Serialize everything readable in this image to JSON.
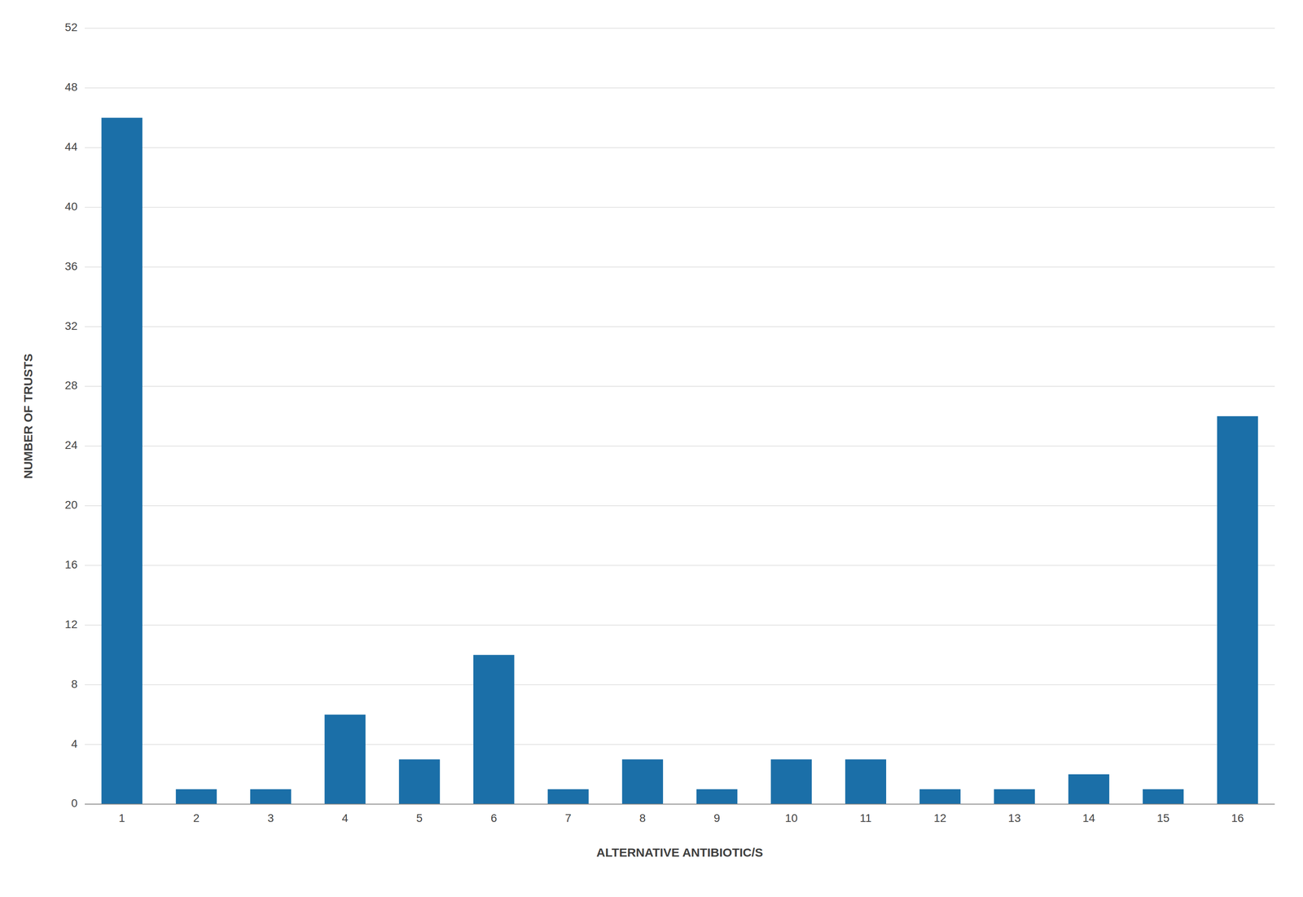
{
  "chart_data": {
    "type": "bar",
    "categories": [
      "1",
      "2",
      "3",
      "4",
      "5",
      "6",
      "7",
      "8",
      "9",
      "10",
      "11",
      "12",
      "13",
      "14",
      "15",
      "16"
    ],
    "values": [
      46,
      1,
      1,
      6,
      3,
      10,
      1,
      3,
      1,
      3,
      3,
      1,
      1,
      2,
      1,
      26
    ],
    "color": "#1B6FA8",
    "xlabel": "ALTERNATIVE ANTIBIOTIC/S",
    "ylabel": "NUMBER OF TRUSTS",
    "ylim": [
      0,
      52
    ],
    "yticks": [
      0,
      4,
      8,
      12,
      16,
      20,
      24,
      28,
      32,
      36,
      40,
      44,
      48,
      52
    ],
    "grid": true
  }
}
